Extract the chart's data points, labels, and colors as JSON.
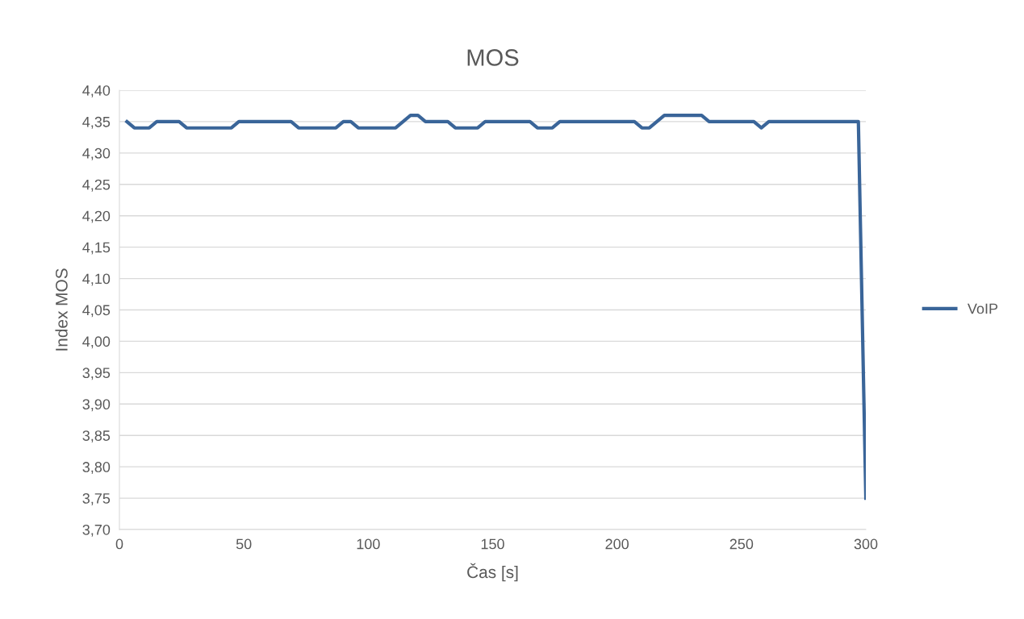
{
  "chart_data": {
    "type": "line",
    "title": "MOS",
    "xlabel": "Čas [s]",
    "ylabel": "Index MOS",
    "xlim": [
      0,
      300
    ],
    "xticks": [
      0,
      50,
      100,
      150,
      200,
      250,
      300
    ],
    "ylim": [
      3.7,
      4.4
    ],
    "yticks": [
      {
        "value": 3.7,
        "label": "3,70"
      },
      {
        "value": 3.75,
        "label": "3,75"
      },
      {
        "value": 3.8,
        "label": "3,80"
      },
      {
        "value": 3.85,
        "label": "3,85"
      },
      {
        "value": 3.9,
        "label": "3,90"
      },
      {
        "value": 3.95,
        "label": "3,95"
      },
      {
        "value": 4.0,
        "label": "4,00"
      },
      {
        "value": 4.05,
        "label": "4,05"
      },
      {
        "value": 4.1,
        "label": "4,10"
      },
      {
        "value": 4.15,
        "label": "4,15"
      },
      {
        "value": 4.2,
        "label": "4,20"
      },
      {
        "value": 4.25,
        "label": "4,25"
      },
      {
        "value": 4.3,
        "label": "4,30"
      },
      {
        "value": 4.35,
        "label": "4,35"
      },
      {
        "value": 4.4,
        "label": "4,40"
      }
    ],
    "grid": "y",
    "legend": "right",
    "marker": "none",
    "line_style": "solid",
    "series": [
      {
        "name": "VoIP",
        "color": "#3a6599",
        "x": [
          3,
          6,
          9,
          12,
          15,
          18,
          21,
          24,
          27,
          30,
          33,
          36,
          39,
          42,
          45,
          48,
          51,
          54,
          57,
          60,
          63,
          66,
          69,
          72,
          75,
          78,
          81,
          84,
          87,
          90,
          93,
          96,
          99,
          102,
          105,
          108,
          111,
          114,
          117,
          120,
          123,
          126,
          129,
          132,
          135,
          138,
          141,
          144,
          147,
          150,
          153,
          156,
          159,
          162,
          165,
          168,
          171,
          174,
          177,
          180,
          183,
          186,
          189,
          192,
          195,
          198,
          201,
          204,
          207,
          210,
          213,
          216,
          219,
          222,
          225,
          228,
          231,
          234,
          237,
          240,
          243,
          246,
          249,
          252,
          255,
          258,
          261,
          264,
          267,
          270,
          273,
          276,
          279,
          282,
          285,
          288,
          291,
          294,
          297,
          300
        ],
        "values": [
          4.35,
          4.34,
          4.34,
          4.34,
          4.35,
          4.35,
          4.35,
          4.35,
          4.34,
          4.34,
          4.34,
          4.34,
          4.34,
          4.34,
          4.34,
          4.35,
          4.35,
          4.35,
          4.35,
          4.35,
          4.35,
          4.35,
          4.35,
          4.34,
          4.34,
          4.34,
          4.34,
          4.34,
          4.34,
          4.35,
          4.35,
          4.34,
          4.34,
          4.34,
          4.34,
          4.34,
          4.34,
          4.35,
          4.36,
          4.36,
          4.35,
          4.35,
          4.35,
          4.35,
          4.34,
          4.34,
          4.34,
          4.34,
          4.35,
          4.35,
          4.35,
          4.35,
          4.35,
          4.35,
          4.35,
          4.34,
          4.34,
          4.34,
          4.35,
          4.35,
          4.35,
          4.35,
          4.35,
          4.35,
          4.35,
          4.35,
          4.35,
          4.35,
          4.35,
          4.34,
          4.34,
          4.35,
          4.36,
          4.36,
          4.36,
          4.36,
          4.36,
          4.36,
          4.35,
          4.35,
          4.35,
          4.35,
          4.35,
          4.35,
          4.35,
          4.34,
          4.35,
          4.35,
          4.35,
          4.35,
          4.35,
          4.35,
          4.35,
          4.35,
          4.35,
          4.35,
          4.35,
          4.35,
          4.35,
          3.75
        ]
      }
    ]
  }
}
